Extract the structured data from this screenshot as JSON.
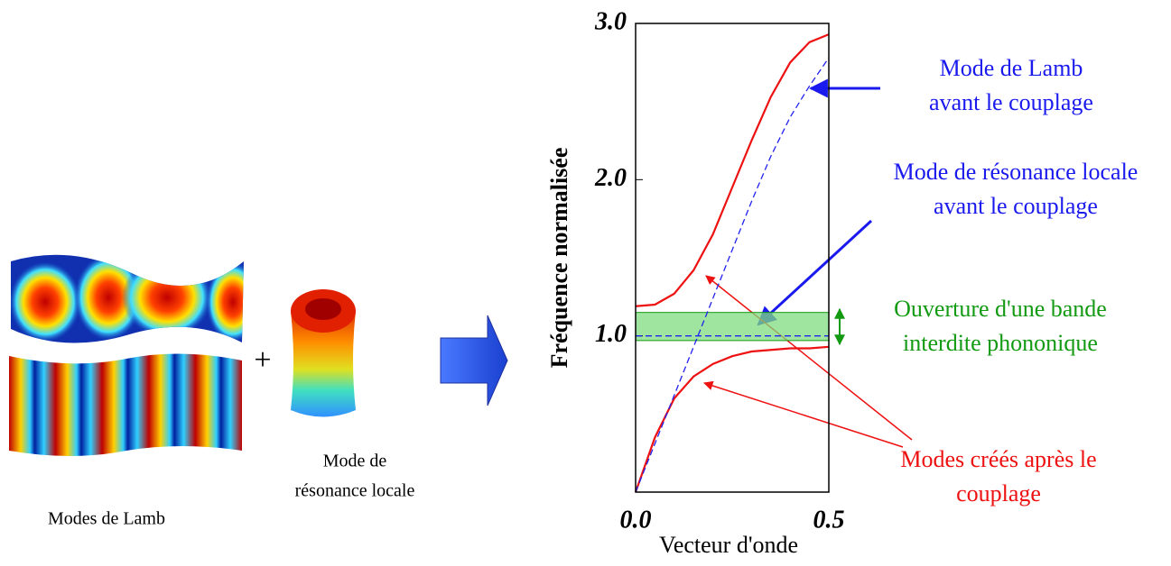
{
  "captions": {
    "lamb": "Modes de Lamb",
    "local": [
      "Mode de",
      "résonance locale"
    ],
    "plus": "+"
  },
  "chart_data": {
    "type": "line",
    "x_label": "Vecteur d'onde",
    "y_label": "Fréquence normalisée",
    "x": [
      0,
      0.05,
      0.1,
      0.15,
      0.2,
      0.25,
      0.3,
      0.35,
      0.4,
      0.45,
      0.5
    ],
    "series": [
      {
        "color": "#ee1111",
        "dash": false,
        "values": [
          1.19,
          1.2,
          1.27,
          1.42,
          1.65,
          1.95,
          2.25,
          2.53,
          2.75,
          2.88,
          2.93
        ]
      },
      {
        "color": "#ee1111",
        "dash": false,
        "values": [
          0,
          0.35,
          0.6,
          0.74,
          0.82,
          0.87,
          0.9,
          0.91,
          0.92,
          0.92,
          0.93
        ]
      },
      {
        "color": "#2222ee",
        "dash": true,
        "values": [
          0,
          0.31,
          0.62,
          0.93,
          1.24,
          1.55,
          1.86,
          2.15,
          2.4,
          2.6,
          2.78
        ]
      },
      {
        "color": "#2222ee",
        "dash": true,
        "values": [
          1.0,
          1.0,
          1.0,
          1.0,
          1.0,
          1.0,
          1.0,
          1.0,
          1.0,
          1.0,
          1.0
        ]
      }
    ],
    "band": {
      "ymin": 0.97,
      "ymax": 1.15,
      "color": "#7fdc7f"
    },
    "xlim": [
      0,
      0.5
    ],
    "ylim": [
      0,
      3
    ],
    "xticks": [
      {
        "value": 0,
        "label": "0.0"
      },
      {
        "value": 0.5,
        "label": "0.5"
      }
    ],
    "yticks": [
      {
        "value": 1,
        "label": "1.0"
      },
      {
        "value": 2,
        "label": "2.0"
      },
      {
        "value": 3,
        "label": "3.0"
      }
    ],
    "annotations": [
      {
        "lines": [
          "Mode de Lamb",
          "avant le couplage"
        ],
        "color": "#1a1aee"
      },
      {
        "lines": [
          "Mode de résonance locale",
          "avant le couplage"
        ],
        "color": "#1a1aee"
      },
      {
        "lines": [
          "Ouverture d'une bande",
          "interdite phononique"
        ],
        "color": "#139a13"
      },
      {
        "lines": [
          "Modes créés après le",
          "couplage"
        ],
        "color": "#ee1111"
      }
    ]
  }
}
